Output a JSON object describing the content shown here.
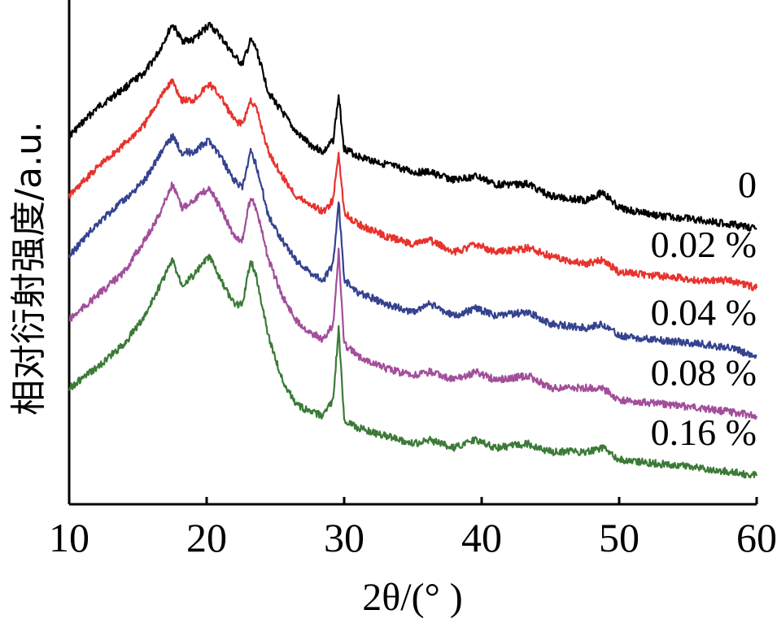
{
  "chart_data": {
    "type": "line",
    "xlabel": "2θ/(° )",
    "ylabel": "相对衍射强度/a.u.",
    "xlim": [
      10,
      60
    ],
    "x_ticks": [
      "10",
      "20",
      "30",
      "40",
      "50",
      "60"
    ],
    "y_ticks": [],
    "grid": false,
    "legend": "inline labels at right end of each curve",
    "series": [
      {
        "name": "0",
        "color": "#000000",
        "points": [
          [
            10,
            0.86
          ],
          [
            12,
            0.93
          ],
          [
            14,
            0.98
          ],
          [
            15.5,
            1.02
          ],
          [
            16.5,
            1.07
          ],
          [
            17.5,
            1.14
          ],
          [
            18.2,
            1.1
          ],
          [
            19,
            1.1
          ],
          [
            20.2,
            1.14
          ],
          [
            21,
            1.11
          ],
          [
            22,
            1.06
          ],
          [
            22.6,
            1.04
          ],
          [
            23.2,
            1.1
          ],
          [
            23.6,
            1.08
          ],
          [
            24.5,
            0.97
          ],
          [
            25.5,
            0.92
          ],
          [
            26.5,
            0.87
          ],
          [
            27.5,
            0.84
          ],
          [
            28.5,
            0.82
          ],
          [
            29.2,
            0.85
          ],
          [
            29.6,
            0.96
          ],
          [
            30,
            0.83
          ],
          [
            31,
            0.81
          ],
          [
            33,
            0.79
          ],
          [
            35,
            0.77
          ],
          [
            36.2,
            0.77
          ],
          [
            38,
            0.75
          ],
          [
            39.6,
            0.76
          ],
          [
            41,
            0.74
          ],
          [
            43.4,
            0.74
          ],
          [
            45,
            0.71
          ],
          [
            47.5,
            0.7
          ],
          [
            48.8,
            0.72
          ],
          [
            50,
            0.68
          ],
          [
            53,
            0.66
          ],
          [
            56,
            0.65
          ],
          [
            58,
            0.64
          ],
          [
            60,
            0.63
          ]
        ]
      },
      {
        "name": "0.02 %",
        "color": "#e8322d",
        "points": [
          [
            10,
            0.71
          ],
          [
            12,
            0.78
          ],
          [
            14,
            0.84
          ],
          [
            15.5,
            0.89
          ],
          [
            16.5,
            0.95
          ],
          [
            17.5,
            1.0
          ],
          [
            18.2,
            0.95
          ],
          [
            19,
            0.95
          ],
          [
            20.2,
            0.99
          ],
          [
            21,
            0.96
          ],
          [
            22,
            0.9
          ],
          [
            22.6,
            0.89
          ],
          [
            23.2,
            0.95
          ],
          [
            23.6,
            0.93
          ],
          [
            24.5,
            0.82
          ],
          [
            25.5,
            0.76
          ],
          [
            26.5,
            0.71
          ],
          [
            27.5,
            0.69
          ],
          [
            28.5,
            0.67
          ],
          [
            29.2,
            0.7
          ],
          [
            29.6,
            0.82
          ],
          [
            30,
            0.67
          ],
          [
            31,
            0.64
          ],
          [
            33,
            0.61
          ],
          [
            35,
            0.59
          ],
          [
            36.2,
            0.6
          ],
          [
            38,
            0.57
          ],
          [
            39.6,
            0.59
          ],
          [
            41,
            0.57
          ],
          [
            43.4,
            0.58
          ],
          [
            45,
            0.56
          ],
          [
            47.5,
            0.54
          ],
          [
            48.8,
            0.55
          ],
          [
            50,
            0.52
          ],
          [
            53,
            0.51
          ],
          [
            56,
            0.5
          ],
          [
            58,
            0.5
          ],
          [
            60,
            0.48
          ]
        ]
      },
      {
        "name": "0.04 %",
        "color": "#34428f",
        "points": [
          [
            10,
            0.56
          ],
          [
            12,
            0.64
          ],
          [
            14,
            0.7
          ],
          [
            15.5,
            0.75
          ],
          [
            16.5,
            0.81
          ],
          [
            17.5,
            0.86
          ],
          [
            18.2,
            0.82
          ],
          [
            19,
            0.82
          ],
          [
            20.2,
            0.85
          ],
          [
            21,
            0.81
          ],
          [
            22,
            0.75
          ],
          [
            22.6,
            0.73
          ],
          [
            23.2,
            0.82
          ],
          [
            23.6,
            0.79
          ],
          [
            24.5,
            0.66
          ],
          [
            25.5,
            0.6
          ],
          [
            26.5,
            0.55
          ],
          [
            27.5,
            0.52
          ],
          [
            28.5,
            0.5
          ],
          [
            29.2,
            0.54
          ],
          [
            29.6,
            0.7
          ],
          [
            30,
            0.5
          ],
          [
            31,
            0.47
          ],
          [
            33,
            0.44
          ],
          [
            35,
            0.42
          ],
          [
            36.2,
            0.44
          ],
          [
            38,
            0.41
          ],
          [
            39.6,
            0.43
          ],
          [
            41,
            0.41
          ],
          [
            43.4,
            0.42
          ],
          [
            45,
            0.39
          ],
          [
            47.5,
            0.38
          ],
          [
            48.8,
            0.39
          ],
          [
            50,
            0.36
          ],
          [
            53,
            0.35
          ],
          [
            56,
            0.34
          ],
          [
            58,
            0.33
          ],
          [
            60,
            0.31
          ]
        ]
      },
      {
        "name": "0.08 %",
        "color": "#a24e9b",
        "points": [
          [
            10,
            0.4
          ],
          [
            12,
            0.46
          ],
          [
            14,
            0.52
          ],
          [
            15.5,
            0.6
          ],
          [
            16.5,
            0.66
          ],
          [
            17.5,
            0.74
          ],
          [
            18.2,
            0.68
          ],
          [
            19,
            0.7
          ],
          [
            20.2,
            0.73
          ],
          [
            21,
            0.68
          ],
          [
            22,
            0.61
          ],
          [
            22.6,
            0.6
          ],
          [
            23.2,
            0.71
          ],
          [
            23.6,
            0.68
          ],
          [
            24.5,
            0.55
          ],
          [
            25.5,
            0.46
          ],
          [
            26.5,
            0.4
          ],
          [
            27.5,
            0.37
          ],
          [
            28.5,
            0.35
          ],
          [
            29.2,
            0.39
          ],
          [
            29.6,
            0.57
          ],
          [
            30,
            0.34
          ],
          [
            31,
            0.31
          ],
          [
            33,
            0.28
          ],
          [
            35,
            0.26
          ],
          [
            36.2,
            0.27
          ],
          [
            38,
            0.25
          ],
          [
            39.6,
            0.27
          ],
          [
            41,
            0.25
          ],
          [
            43.4,
            0.26
          ],
          [
            45,
            0.23
          ],
          [
            47.5,
            0.23
          ],
          [
            48.8,
            0.23
          ],
          [
            50,
            0.2
          ],
          [
            53,
            0.19
          ],
          [
            56,
            0.18
          ],
          [
            58,
            0.17
          ],
          [
            60,
            0.16
          ]
        ]
      },
      {
        "name": "0.16 %",
        "color": "#3b7a37",
        "points": [
          [
            10,
            0.23
          ],
          [
            12,
            0.28
          ],
          [
            14,
            0.34
          ],
          [
            15.5,
            0.41
          ],
          [
            16.5,
            0.48
          ],
          [
            17.5,
            0.55
          ],
          [
            18.2,
            0.49
          ],
          [
            19,
            0.51
          ],
          [
            20.2,
            0.56
          ],
          [
            21,
            0.5
          ],
          [
            22,
            0.44
          ],
          [
            22.6,
            0.44
          ],
          [
            23.2,
            0.55
          ],
          [
            23.6,
            0.51
          ],
          [
            24.5,
            0.36
          ],
          [
            25.5,
            0.25
          ],
          [
            26.5,
            0.19
          ],
          [
            27.5,
            0.17
          ],
          [
            28.5,
            0.16
          ],
          [
            29.2,
            0.2
          ],
          [
            29.6,
            0.38
          ],
          [
            30,
            0.15
          ],
          [
            31,
            0.13
          ],
          [
            33,
            0.11
          ],
          [
            35,
            0.09
          ],
          [
            36.2,
            0.1
          ],
          [
            38,
            0.08
          ],
          [
            39.6,
            0.1
          ],
          [
            41,
            0.08
          ],
          [
            43.4,
            0.09
          ],
          [
            45,
            0.07
          ],
          [
            47.5,
            0.07
          ],
          [
            48.8,
            0.08
          ],
          [
            50,
            0.05
          ],
          [
            53,
            0.04
          ],
          [
            56,
            0.03
          ],
          [
            58,
            0.02
          ],
          [
            60,
            0.01
          ]
        ]
      }
    ]
  }
}
